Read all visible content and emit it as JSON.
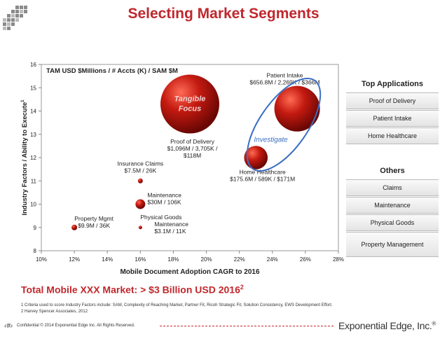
{
  "page": {
    "title": "Selecting Market Segments",
    "total_text": "Total Mobile XXX Market: > $3 Billion USD 2016",
    "total_sup": "2",
    "footnotes": [
      "1 Criteria used to score  Industry Factors include: SAM, Complexity of Reaching Market, Partner Fit, Ricoh Strategic Fit, Solution Consistency, EWS Development Effort.",
      "2  Harvey Spencer Associates, 2012"
    ],
    "page_number": "‹#›",
    "confidential": "Confidential  © 2014 Exponential Edge Inc. All Rights Reserved.",
    "brand": "Exponential Edge, Inc.",
    "brand_mark": "®"
  },
  "sidebar": {
    "top_header": "Top Applications",
    "top_items": [
      "Proof of Delivery",
      "Patient Intake",
      "Home Healthcare"
    ],
    "others_header": "Others",
    "other_items": [
      "Claims",
      "Maintenance",
      "Physical Goods",
      "Property Management"
    ]
  },
  "chart_data": {
    "type": "scatter",
    "subtype": "bubble",
    "title": "TAM USD $Millions / # Accts (K) / SAM $M",
    "xlabel": "Mobile Document Adoption CAGR to 2016",
    "ylabel": "Industry Factors / Ability to Execute",
    "ylabel_sup": "1",
    "xlim": [
      0.1,
      0.28
    ],
    "ylim": [
      8,
      16
    ],
    "x_ticks": [
      0.1,
      0.12,
      0.14,
      0.16,
      0.18,
      0.2,
      0.22,
      0.24,
      0.26,
      0.28
    ],
    "x_tick_labels": [
      "10%",
      "12%",
      "14%",
      "16%",
      "18%",
      "20%",
      "22%",
      "24%",
      "26%",
      "28%"
    ],
    "y_ticks": [
      8,
      9,
      10,
      11,
      12,
      13,
      14,
      15,
      16
    ],
    "y_tick_labels": [
      "8",
      "9",
      "10",
      "11",
      "12",
      "13",
      "14",
      "15",
      "16"
    ],
    "bubbles": [
      {
        "name": "Property Mgmt",
        "detail": "$9.9M / 36K",
        "x": 0.12,
        "y": 9.0,
        "size": 9.9
      },
      {
        "name": "Insurance Claims",
        "detail": "$7.5M / 26K",
        "x": 0.16,
        "y": 11.0,
        "size": 7.5
      },
      {
        "name": "Maintenance",
        "detail": "$30M / 106K",
        "x": 0.16,
        "y": 10.0,
        "size": 30
      },
      {
        "name": "Physical Goods Maintenance",
        "detail": "$3.1M / 11K",
        "x": 0.16,
        "y": 9.0,
        "size": 3.1
      },
      {
        "name": "Proof of Delivery",
        "detail": "$1,096M / 3,705K / $118M",
        "x": 0.19,
        "y": 14.3,
        "size": 1096
      },
      {
        "name": "Home Healthcare",
        "detail": "$175.6M / 589K / $171M",
        "x": 0.23,
        "y": 12.0,
        "size": 175.6
      },
      {
        "name": "Patient Intake",
        "detail": "$656.8M / 2,269K / $366M",
        "x": 0.255,
        "y": 14.1,
        "size": 656.8
      }
    ],
    "annotations": [
      {
        "text": "Tangible Focus",
        "x": 0.19,
        "y": 14.3
      },
      {
        "text": "Investigate",
        "x": 0.245,
        "y": 12.8
      }
    ]
  }
}
